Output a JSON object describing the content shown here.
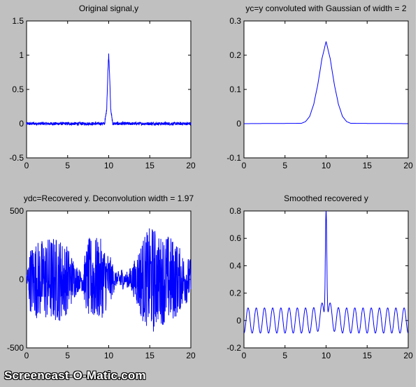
{
  "window": {
    "watermark": "Screencast-O-Matic.com",
    "background_color": "#c0c0c0",
    "line_color": "#0000ff"
  },
  "chart_data": [
    {
      "type": "line",
      "title": "Original signal,y",
      "xlabel": "",
      "ylabel": "",
      "xlim": [
        0,
        20
      ],
      "ylim": [
        -0.5,
        1.5
      ],
      "xticks": [
        0,
        5,
        10,
        15,
        20
      ],
      "xtick_labels": [
        "0",
        "5",
        "10",
        "15",
        "20"
      ],
      "yticks": [
        -0.5,
        0,
        0.5,
        1,
        1.5
      ],
      "ytick_labels": [
        "-0.5",
        "0",
        "0.5",
        "1",
        "1.5"
      ],
      "grid": false,
      "series": [
        {
          "description": "narrow peak at x=10 of height ~1 on a noisy baseline (noise ~0.02)",
          "x": [
            0,
            9.5,
            9.75,
            9.9,
            10.0,
            10.1,
            10.25,
            10.5,
            20
          ],
          "y": [
            0,
            0,
            0.2,
            0.75,
            1.02,
            0.75,
            0.2,
            0,
            0
          ]
        }
      ]
    },
    {
      "type": "line",
      "title": "yc=y convoluted with Gaussian of width = 2",
      "xlabel": "",
      "ylabel": "",
      "xlim": [
        0,
        20
      ],
      "ylim": [
        -0.1,
        0.3
      ],
      "xticks": [
        0,
        5,
        10,
        15,
        20
      ],
      "xtick_labels": [
        "0",
        "5",
        "10",
        "15",
        "20"
      ],
      "yticks": [
        -0.1,
        0,
        0.1,
        0.2,
        0.3
      ],
      "ytick_labels": [
        "-0.1",
        "0",
        "0.1",
        "0.2",
        "0.3"
      ],
      "grid": false,
      "series": [
        {
          "description": "smooth Gaussian centered at 10, peak ~0.24",
          "x": [
            0,
            7,
            7.5,
            8,
            8.5,
            9,
            9.5,
            10,
            10.5,
            11,
            11.5,
            12,
            12.5,
            13,
            20
          ],
          "y": [
            0,
            0.001,
            0.006,
            0.021,
            0.057,
            0.115,
            0.19,
            0.24,
            0.19,
            0.115,
            0.057,
            0.021,
            0.006,
            0.001,
            0
          ]
        }
      ]
    },
    {
      "type": "line",
      "title": "ydc=Recovered y. Deconvolution width = 1.97",
      "xlabel": "",
      "ylabel": "",
      "xlim": [
        0,
        20
      ],
      "ylim": [
        -500,
        500
      ],
      "xticks": [
        0,
        5,
        10,
        15,
        20
      ],
      "xtick_labels": [
        "0",
        "5",
        "10",
        "15",
        "20"
      ],
      "yticks": [
        -500,
        0,
        500
      ],
      "ytick_labels": [
        "-500",
        "0",
        "500"
      ],
      "grid": false,
      "series": [
        {
          "description": "dense high-frequency noise with amplitude envelope",
          "envelope_x": [
            0,
            0.5,
            1,
            2,
            3,
            4,
            5,
            6,
            6.6,
            7,
            7.5,
            8,
            9,
            10,
            11,
            11.5,
            12,
            13,
            14,
            15,
            15.5,
            16,
            17,
            18,
            19,
            20
          ],
          "envelope_y": [
            60,
            250,
            280,
            300,
            320,
            310,
            250,
            120,
            60,
            150,
            300,
            320,
            300,
            200,
            40,
            100,
            40,
            120,
            300,
            380,
            400,
            320,
            340,
            300,
            200,
            150
          ]
        }
      ]
    },
    {
      "type": "line",
      "title": "Smoothed recovered y",
      "xlabel": "",
      "ylabel": "",
      "xlim": [
        0,
        20
      ],
      "ylim": [
        -0.2,
        0.8
      ],
      "xticks": [
        0,
        5,
        10,
        15,
        20
      ],
      "xtick_labels": [
        "0",
        "5",
        "10",
        "15",
        "20"
      ],
      "yticks": [
        -0.2,
        0,
        0.2,
        0.4,
        0.6,
        0.8
      ],
      "ytick_labels": [
        "-0.2",
        "0",
        "0.2",
        "0.4",
        "0.6",
        "0.8"
      ],
      "grid": false,
      "series": [
        {
          "description": "periodic ringing (period ~1, amplitude ~0.1) with sharp peak ~0.8 at x=10",
          "ringing_period": 1.0,
          "ringing_amplitude": 0.1,
          "peak_x": 10,
          "peak_y": 0.8
        }
      ]
    }
  ]
}
